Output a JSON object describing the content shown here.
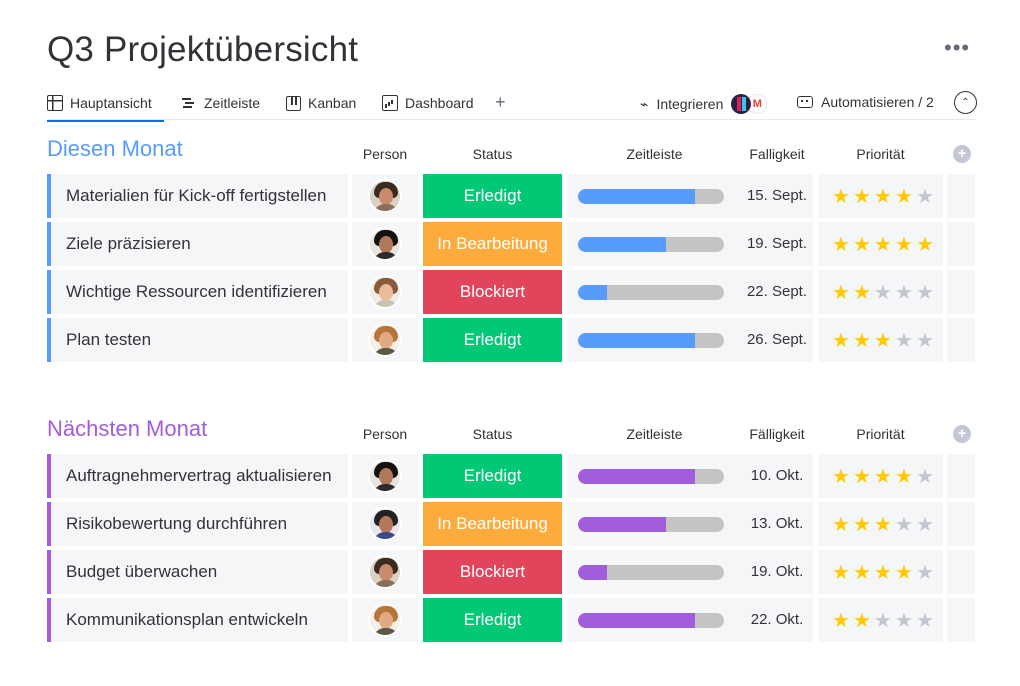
{
  "page": {
    "title": "Q3 Projektübersicht",
    "more": "•••"
  },
  "tabs": [
    {
      "label": "Hauptansicht"
    },
    {
      "label": "Zeitleiste"
    },
    {
      "label": "Kanban"
    },
    {
      "label": "Dashboard"
    }
  ],
  "toolbar": {
    "add_tab": "+",
    "integrate_label": "Integrieren",
    "gmail_glyph": "M",
    "automate_label": "Automatisieren / 2",
    "collapse_glyph": "⌃"
  },
  "colors": {
    "accent": "#0073ea",
    "group1": "#579bfc",
    "group2": "#a25ddc",
    "done": "#00c875",
    "working": "#fdab3d",
    "stuck": "#e2445c",
    "star_on": "#ffcb00",
    "star_off": "#c5c7d0"
  },
  "groups": [
    {
      "title": "Diesen Monat",
      "color": "#579bfc",
      "headers": {
        "person": "Person",
        "status": "Status",
        "timeline": "Zeitleiste",
        "due": "Falligkeit",
        "priority": "Priorität"
      },
      "rows": [
        {
          "task": "Materialien für Kick-off fertigstellen",
          "status": "Erledigt",
          "status_color": "#00c875",
          "progress": 0.8,
          "due": "15. Sept.",
          "priority": 4,
          "avatar": 0
        },
        {
          "task": "Ziele präzisieren",
          "status": "In Bearbeitung",
          "status_color": "#fdab3d",
          "progress": 0.6,
          "due": "19. Sept.",
          "priority": 5,
          "avatar": 1
        },
        {
          "task": "Wichtige Ressourcen identifizieren",
          "status": "Blockiert",
          "status_color": "#e2445c",
          "progress": 0.2,
          "due": "22. Sept.",
          "priority": 2,
          "avatar": 2
        },
        {
          "task": "Plan testen",
          "status": "Erledigt",
          "status_color": "#00c875",
          "progress": 0.8,
          "due": "26. Sept.",
          "priority": 3,
          "avatar": 3
        }
      ]
    },
    {
      "title": "Nächsten Monat",
      "color": "#a25ddc",
      "headers": {
        "person": "Person",
        "status": "Status",
        "timeline": "Zeitleiste",
        "due": "Fälligkeit",
        "priority": "Priorität"
      },
      "rows": [
        {
          "task": "Auftragnehmervertrag aktualisieren",
          "status": "Erledigt",
          "status_color": "#00c875",
          "progress": 0.8,
          "due": "10. Okt.",
          "priority": 4,
          "avatar": 1
        },
        {
          "task": "Risikobewertung durchführen",
          "status": "In Bearbeitung",
          "status_color": "#fdab3d",
          "progress": 0.6,
          "due": "13. Okt.",
          "priority": 3,
          "avatar": 4
        },
        {
          "task": "Budget überwachen",
          "status": "Blockiert",
          "status_color": "#e2445c",
          "progress": 0.2,
          "due": "19. Okt.",
          "priority": 4,
          "avatar": 0
        },
        {
          "task": "Kommunikationsplan entwickeln",
          "status": "Erledigt",
          "status_color": "#00c875",
          "progress": 0.8,
          "due": "22. Okt.",
          "priority": 2,
          "avatar": 3
        }
      ]
    }
  ]
}
